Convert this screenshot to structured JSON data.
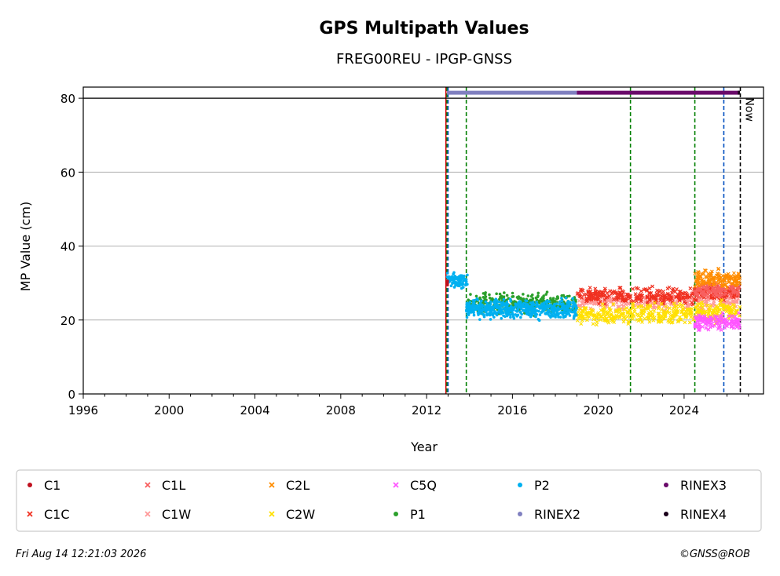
{
  "chart_data": {
    "type": "scatter",
    "title": "GPS Multipath Values",
    "subtitle": "FREG00REU - IPGP-GNSS",
    "xlabel": "Year",
    "ylabel": "MP Value (cm)",
    "xlim": [
      1996,
      2027.7
    ],
    "ylim": [
      0,
      83
    ],
    "x_ticks": [
      1996,
      2000,
      2004,
      2008,
      2012,
      2016,
      2020,
      2024
    ],
    "y_ticks": [
      0,
      20,
      40,
      60,
      80
    ],
    "grid": "y-major",
    "now_label": "Now",
    "now_year": 2026.62,
    "reference_line_y": 80,
    "legend_position": "bottom",
    "series": [
      {
        "name": "C1",
        "marker": "dot",
        "color": "#c0111f",
        "x_range": [
          2012.95,
          2013.0
        ],
        "mean": 30
      },
      {
        "name": "C1C",
        "marker": "cross",
        "color": "#f03020",
        "x_range": [
          2019.0,
          2026.6
        ],
        "mean": 26.5
      },
      {
        "name": "C1L",
        "marker": "cross",
        "color": "#f86060",
        "x_range": [
          2024.5,
          2026.6
        ],
        "mean": 28
      },
      {
        "name": "C1W",
        "marker": "cross",
        "color": "#ff9999",
        "x_range": [
          2019.0,
          2026.6
        ],
        "mean": 25
      },
      {
        "name": "C2L",
        "marker": "cross",
        "color": "#ff8c00",
        "x_range": [
          2024.5,
          2026.6
        ],
        "mean": 31
      },
      {
        "name": "C2W",
        "marker": "cross",
        "color": "#ffe000",
        "x_range": [
          2019.0,
          2026.6
        ],
        "mean": 22
      },
      {
        "name": "C5Q",
        "marker": "cross",
        "color": "#ff55ff",
        "x_range": [
          2024.5,
          2026.6
        ],
        "mean": 19.5
      },
      {
        "name": "P1",
        "marker": "dot",
        "color": "#2ca02c",
        "x_range": [
          2013.9,
          2019.0
        ],
        "mean": 24.5
      },
      {
        "name": "P2",
        "marker": "dot",
        "color": "#00b0f0",
        "x_range": [
          2012.95,
          2019.0
        ],
        "mean": 23
      },
      {
        "name": "RINEX2",
        "marker": "dot",
        "color": "#8080c0",
        "x_range": [
          2012.95,
          2019.0
        ],
        "y": 81.5
      },
      {
        "name": "RINEX3",
        "marker": "dot",
        "color": "#6a0a6a",
        "x_range": [
          2019.0,
          2026.6
        ],
        "y": 81.5
      },
      {
        "name": "RINEX4",
        "marker": "dot",
        "color": "#1a001a",
        "x_range": [
          2026.5,
          2026.6
        ],
        "y": 81.5
      }
    ],
    "event_lines": [
      {
        "x": 2012.9,
        "color": "#cc0000",
        "style": "solid"
      },
      {
        "x": 2012.95,
        "color": "#008000",
        "style": "dashed"
      },
      {
        "x": 2013.0,
        "color": "#0050c0",
        "style": "dashed"
      },
      {
        "x": 2013.85,
        "color": "#008000",
        "style": "dashed"
      },
      {
        "x": 2021.5,
        "color": "#008000",
        "style": "dashed"
      },
      {
        "x": 2024.5,
        "color": "#008000",
        "style": "dashed"
      },
      {
        "x": 2025.85,
        "color": "#0050c0",
        "style": "dashed"
      },
      {
        "x": 2026.62,
        "color": "#000000",
        "style": "dashed"
      }
    ]
  },
  "legend": {
    "entries": [
      {
        "label": "C1",
        "marker": "dot",
        "color": "#c0111f"
      },
      {
        "label": "C1L",
        "marker": "cross",
        "color": "#f86060"
      },
      {
        "label": "C2L",
        "marker": "cross",
        "color": "#ff8c00"
      },
      {
        "label": "C5Q",
        "marker": "cross",
        "color": "#ff55ff"
      },
      {
        "label": "P2",
        "marker": "dot",
        "color": "#00b0f0"
      },
      {
        "label": "RINEX3",
        "marker": "dot",
        "color": "#6a0a6a"
      },
      {
        "label": "C1C",
        "marker": "cross",
        "color": "#f03020"
      },
      {
        "label": "C1W",
        "marker": "cross",
        "color": "#ff9999"
      },
      {
        "label": "C2W",
        "marker": "cross",
        "color": "#ffe000"
      },
      {
        "label": "P1",
        "marker": "dot",
        "color": "#2ca02c"
      },
      {
        "label": "RINEX2",
        "marker": "dot",
        "color": "#8080c0"
      },
      {
        "label": "RINEX4",
        "marker": "dot",
        "color": "#1a001a"
      }
    ]
  },
  "footer": {
    "timestamp": "Fri Aug 14 12:21:03 2026",
    "copyright": "©GNSS@ROB"
  }
}
